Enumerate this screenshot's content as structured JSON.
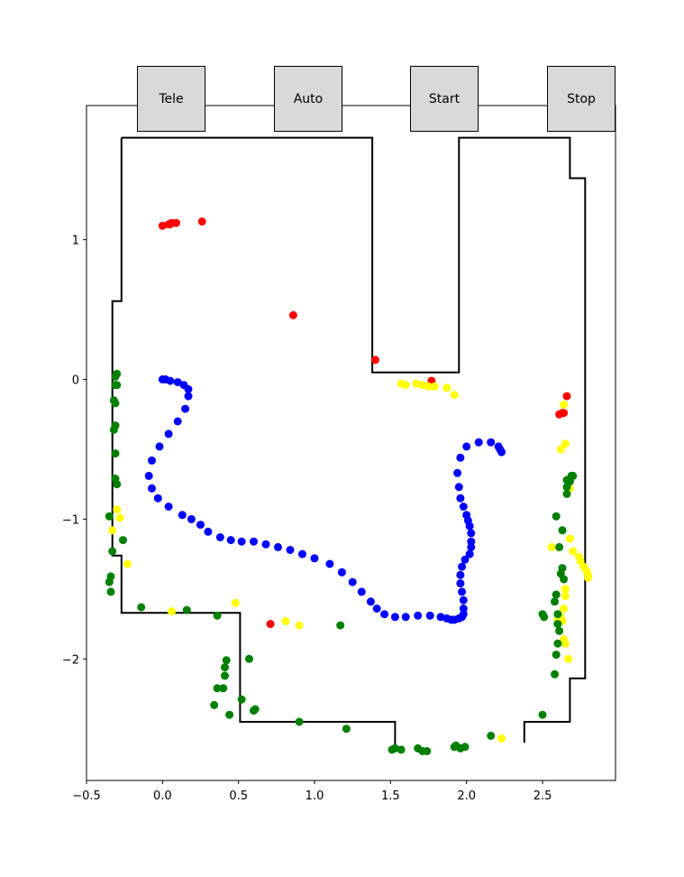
{
  "buttons": {
    "tele": "Tele",
    "auto": "Auto",
    "start": "Start",
    "stop": "Stop"
  },
  "colors": {
    "robot_path": "#0000ff",
    "obstacles_red": "#ff0000",
    "detections_yellow": "#ffff00",
    "detections_green": "#008000",
    "walls": "#000000",
    "button_bg": "#d9d9d9"
  },
  "chart_data": {
    "type": "scatter",
    "xlim": [
      -0.5,
      2.98
    ],
    "ylim": [
      -2.87,
      1.96
    ],
    "xticks": [
      -0.5,
      0.0,
      0.5,
      1.0,
      1.5,
      2.0,
      2.5
    ],
    "xtick_labels": [
      "−0.5",
      "0.0",
      "0.5",
      "1.0",
      "1.5",
      "2.0",
      "2.5"
    ],
    "yticks": [
      1,
      0,
      -1,
      -2
    ],
    "ytick_labels": [
      "1",
      "0",
      "−1",
      "−2"
    ],
    "walls": [
      [
        [
          -0.27,
          1.73
        ],
        [
          1.38,
          1.73
        ],
        [
          1.38,
          0.05
        ],
        [
          1.95,
          0.05
        ],
        [
          1.95,
          1.73
        ],
        [
          2.68,
          1.73
        ],
        [
          2.68,
          1.44
        ],
        [
          2.78,
          1.44
        ],
        [
          2.78,
          -2.14
        ],
        [
          2.68,
          -2.14
        ],
        [
          2.68,
          -2.45
        ],
        [
          2.38,
          -2.45
        ],
        [
          2.38,
          -2.6
        ]
      ],
      [
        [
          -0.27,
          1.73
        ],
        [
          -0.27,
          0.56
        ],
        [
          -0.33,
          0.56
        ],
        [
          -0.33,
          -1.26
        ],
        [
          -0.27,
          -1.26
        ],
        [
          -0.27,
          -1.67
        ],
        [
          0.51,
          -1.67
        ],
        [
          0.51,
          -2.45
        ],
        [
          1.53,
          -2.45
        ],
        [
          1.53,
          -2.65
        ]
      ]
    ],
    "series": [
      {
        "color": "#0000ff",
        "points": [
          [
            0.0,
            0.0
          ],
          [
            0.05,
            -0.01
          ],
          [
            0.1,
            -0.02
          ],
          [
            0.14,
            -0.04
          ],
          [
            0.17,
            -0.07
          ],
          [
            0.17,
            -0.12
          ],
          [
            0.15,
            -0.21
          ],
          [
            0.1,
            -0.3
          ],
          [
            0.04,
            -0.39
          ],
          [
            -0.02,
            -0.48
          ],
          [
            -0.07,
            -0.58
          ],
          [
            -0.09,
            -0.69
          ],
          [
            -0.07,
            -0.78
          ],
          [
            -0.03,
            -0.85
          ],
          [
            0.04,
            -0.91
          ],
          [
            0.13,
            -0.97
          ],
          [
            0.19,
            -1.0
          ],
          [
            0.25,
            -1.04
          ],
          [
            0.3,
            -1.09
          ],
          [
            0.38,
            -1.13
          ],
          [
            0.45,
            -1.15
          ],
          [
            0.52,
            -1.16
          ],
          [
            0.6,
            -1.16
          ],
          [
            0.68,
            -1.18
          ],
          [
            0.76,
            -1.2
          ],
          [
            0.84,
            -1.22
          ],
          [
            0.92,
            -1.25
          ],
          [
            1.0,
            -1.28
          ],
          [
            1.1,
            -1.32
          ],
          [
            1.18,
            -1.38
          ],
          [
            1.25,
            -1.45
          ],
          [
            1.31,
            -1.52
          ],
          [
            1.37,
            -1.59
          ],
          [
            1.41,
            -1.64
          ],
          [
            1.46,
            -1.68
          ],
          [
            1.53,
            -1.7
          ],
          [
            1.6,
            -1.7
          ],
          [
            1.68,
            -1.69
          ],
          [
            1.76,
            -1.69
          ],
          [
            1.83,
            -1.7
          ],
          [
            1.87,
            -1.71
          ],
          [
            1.9,
            -1.72
          ],
          [
            1.92,
            -1.72
          ],
          [
            1.95,
            -1.71
          ],
          [
            1.97,
            -1.7
          ],
          [
            1.98,
            -1.68
          ],
          [
            1.98,
            -1.64
          ],
          [
            1.98,
            -1.58
          ],
          [
            1.97,
            -1.52
          ],
          [
            1.96,
            -1.46
          ],
          [
            1.96,
            -1.4
          ],
          [
            1.97,
            -1.34
          ],
          [
            1.99,
            -1.29
          ],
          [
            2.02,
            -1.25
          ],
          [
            2.03,
            -1.2
          ],
          [
            2.03,
            -1.16
          ],
          [
            2.03,
            -1.1
          ],
          [
            2.02,
            -1.05
          ],
          [
            2.01,
            -1.01
          ],
          [
            2.0,
            -0.97
          ],
          [
            1.98,
            -0.91
          ],
          [
            1.96,
            -0.85
          ],
          [
            1.95,
            -0.77
          ],
          [
            1.94,
            -0.67
          ],
          [
            1.96,
            -0.56
          ],
          [
            2.0,
            -0.48
          ],
          [
            2.08,
            -0.45
          ],
          [
            2.16,
            -0.45
          ],
          [
            2.21,
            -0.48
          ],
          [
            2.22,
            -0.5
          ],
          [
            2.23,
            -0.52
          ],
          [
            0.02,
            0.0
          ]
        ]
      },
      {
        "color": "#ff0000",
        "points": [
          [
            0.0,
            1.1
          ],
          [
            0.04,
            1.11
          ],
          [
            0.06,
            1.12
          ],
          [
            0.09,
            1.12
          ],
          [
            0.05,
            1.11
          ],
          [
            0.26,
            1.13
          ],
          [
            0.86,
            0.46
          ],
          [
            1.4,
            0.14
          ],
          [
            1.77,
            -0.01
          ],
          [
            2.66,
            -0.12
          ],
          [
            2.63,
            -0.24
          ],
          [
            2.61,
            -0.25
          ],
          [
            2.64,
            -0.24
          ],
          [
            0.71,
            -1.75
          ]
        ]
      },
      {
        "color": "#ffff00",
        "points": [
          [
            1.57,
            -0.03
          ],
          [
            1.6,
            -0.04
          ],
          [
            1.67,
            -0.03
          ],
          [
            1.71,
            -0.04
          ],
          [
            1.75,
            -0.05
          ],
          [
            1.79,
            -0.05
          ],
          [
            1.87,
            -0.06
          ],
          [
            1.92,
            -0.11
          ],
          [
            2.64,
            -0.18
          ],
          [
            2.65,
            -0.46
          ],
          [
            2.62,
            -0.5
          ],
          [
            2.68,
            -0.78
          ],
          [
            -0.3,
            -0.93
          ],
          [
            -0.28,
            -0.99
          ],
          [
            -0.33,
            -1.08
          ],
          [
            -0.23,
            -1.32
          ],
          [
            2.68,
            -1.14
          ],
          [
            2.56,
            -1.2
          ],
          [
            2.7,
            -1.23
          ],
          [
            2.74,
            -1.27
          ],
          [
            2.75,
            -1.3
          ],
          [
            2.77,
            -1.34
          ],
          [
            2.79,
            -1.37
          ],
          [
            2.8,
            -1.4
          ],
          [
            2.8,
            -1.42
          ],
          [
            2.65,
            -1.5
          ],
          [
            2.65,
            -1.55
          ],
          [
            2.64,
            -1.64
          ],
          [
            2.62,
            -1.7
          ],
          [
            2.6,
            -1.72
          ],
          [
            2.63,
            -1.73
          ],
          [
            2.64,
            -1.86
          ],
          [
            2.65,
            -1.89
          ],
          [
            2.67,
            -2.0
          ],
          [
            0.48,
            -1.6
          ],
          [
            0.06,
            -1.66
          ],
          [
            0.81,
            -1.73
          ],
          [
            0.9,
            -1.76
          ],
          [
            2.23,
            -2.57
          ]
        ]
      },
      {
        "color": "#008000",
        "points": [
          [
            -0.3,
            0.04
          ],
          [
            -0.31,
            0.02
          ],
          [
            -0.31,
            -0.04
          ],
          [
            -0.3,
            -0.04
          ],
          [
            -0.32,
            -0.15
          ],
          [
            -0.31,
            -0.17
          ],
          [
            -0.31,
            -0.33
          ],
          [
            -0.32,
            -0.36
          ],
          [
            -0.31,
            -0.53
          ],
          [
            -0.31,
            -0.71
          ],
          [
            -0.3,
            -0.75
          ],
          [
            -0.35,
            -0.98
          ],
          [
            -0.26,
            -1.15
          ],
          [
            -0.33,
            -1.23
          ],
          [
            -0.34,
            -1.41
          ],
          [
            -0.35,
            -1.45
          ],
          [
            -0.34,
            -1.52
          ],
          [
            -0.14,
            -1.63
          ],
          [
            0.16,
            -1.65
          ],
          [
            0.36,
            -1.69
          ],
          [
            2.66,
            -0.72
          ],
          [
            2.69,
            -0.69
          ],
          [
            2.7,
            -0.69
          ],
          [
            2.68,
            -0.73
          ],
          [
            2.66,
            -0.77
          ],
          [
            2.66,
            -0.82
          ],
          [
            2.59,
            -0.98
          ],
          [
            2.63,
            -1.08
          ],
          [
            2.61,
            -1.2
          ],
          [
            2.63,
            -1.35
          ],
          [
            2.62,
            -1.39
          ],
          [
            2.64,
            -1.43
          ],
          [
            2.59,
            -1.54
          ],
          [
            2.58,
            -1.59
          ],
          [
            2.6,
            -1.68
          ],
          [
            2.6,
            -1.75
          ],
          [
            2.61,
            -1.8
          ],
          [
            2.6,
            -1.89
          ],
          [
            2.59,
            -1.97
          ],
          [
            2.58,
            -2.11
          ],
          [
            2.5,
            -1.68
          ],
          [
            2.51,
            -1.7
          ],
          [
            0.42,
            -2.01
          ],
          [
            0.41,
            -2.06
          ],
          [
            0.41,
            -2.12
          ],
          [
            0.36,
            -2.21
          ],
          [
            0.4,
            -2.21
          ],
          [
            0.34,
            -2.33
          ],
          [
            0.44,
            -2.4
          ],
          [
            0.57,
            -2.0
          ],
          [
            0.52,
            -2.29
          ],
          [
            0.61,
            -2.36
          ],
          [
            0.6,
            -2.37
          ],
          [
            0.9,
            -2.45
          ],
          [
            1.21,
            -2.5
          ],
          [
            1.17,
            -1.76
          ],
          [
            1.51,
            -2.65
          ],
          [
            1.53,
            -2.64
          ],
          [
            1.57,
            -2.65
          ],
          [
            1.68,
            -2.64
          ],
          [
            1.71,
            -2.66
          ],
          [
            1.74,
            -2.66
          ],
          [
            1.92,
            -2.63
          ],
          [
            1.93,
            -2.62
          ],
          [
            1.96,
            -2.64
          ],
          [
            1.99,
            -2.63
          ],
          [
            2.16,
            -2.55
          ],
          [
            2.5,
            -2.4
          ]
        ]
      }
    ]
  }
}
